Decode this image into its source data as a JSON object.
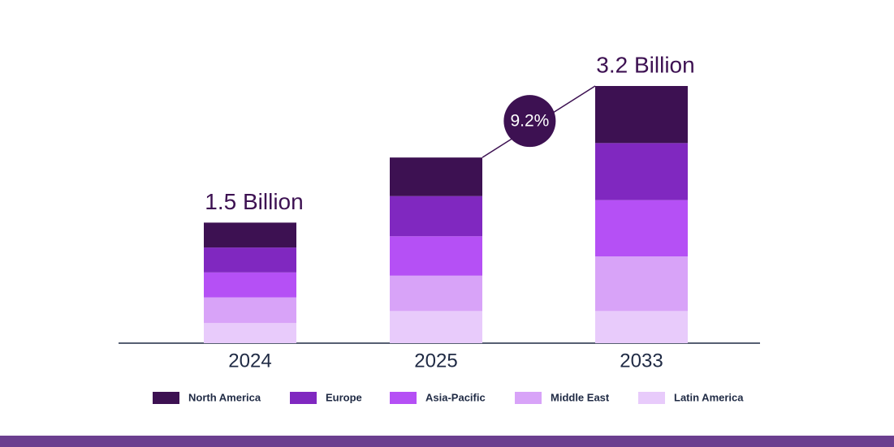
{
  "chart_data": {
    "type": "stacked_bar",
    "categories": [
      "2024",
      "2025",
      "2033"
    ],
    "series": [
      {
        "name": "North America",
        "color": "#3d1152",
        "values": [
          0.31,
          0.48,
          0.71
        ]
      },
      {
        "name": "Europe",
        "color": "#8028c0",
        "values": [
          0.31,
          0.5,
          0.71
        ]
      },
      {
        "name": "Asia-Pacific",
        "color": "#b550f5",
        "values": [
          0.31,
          0.49,
          0.7
        ]
      },
      {
        "name": "Middle East",
        "color": "#d8a3f8",
        "values": [
          0.32,
          0.44,
          0.68
        ]
      },
      {
        "name": "Latin America",
        "color": "#e8cbfb",
        "values": [
          0.25,
          0.4,
          0.4
        ]
      }
    ],
    "annotations": [
      {
        "category": "2024",
        "text": "1.5 Billion"
      },
      {
        "category": "2033",
        "text": "3.2 Billion"
      }
    ],
    "growth_badge": {
      "from": "2025",
      "to": "2033",
      "text": "9.2%"
    }
  }
}
